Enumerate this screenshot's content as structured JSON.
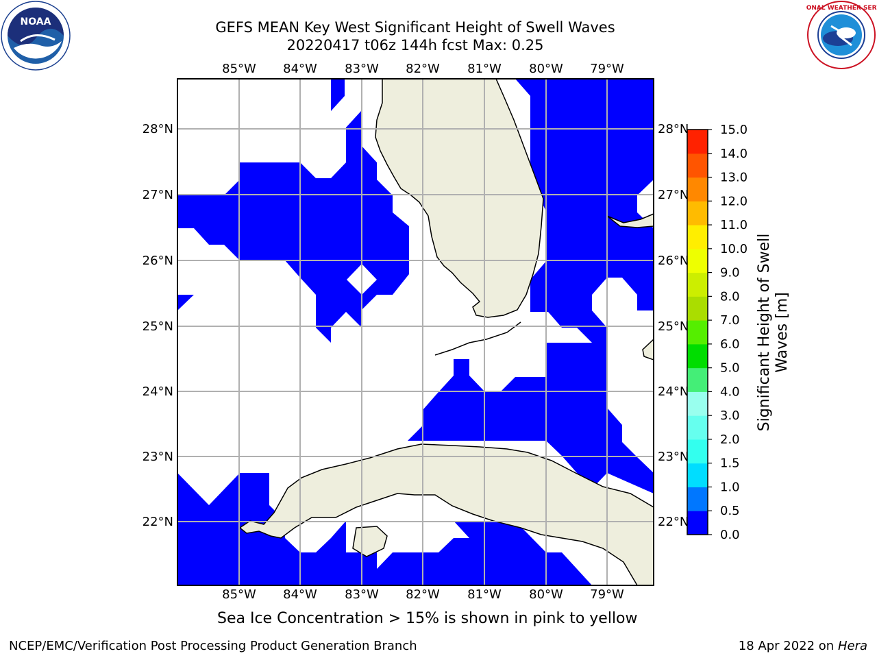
{
  "header": {
    "title_line1": "GEFS MEAN Key West Significant Height of Swell Waves",
    "title_line2": "20220417 t06z 144h fcst   Max: 0.25"
  },
  "logos": {
    "noaa": {
      "text": "NOAA",
      "ring_text": "NATIONAL OCEANIC AND ATMOSPHERIC ADMINISTRATION · U.S. DEPARTMENT OF COMMERCE"
    },
    "nws": {
      "ring_text": "NATIONAL WEATHER SERVICE"
    }
  },
  "map": {
    "lon_labels": [
      "85°W",
      "84°W",
      "83°W",
      "82°W",
      "81°W",
      "80°W",
      "79°W"
    ],
    "lat_labels": [
      "28°N",
      "27°N",
      "26°N",
      "25°N",
      "24°N",
      "23°N",
      "22°N"
    ]
  },
  "colorbar": {
    "label": "Significant Height of Swell Waves [m]",
    "tick_labels": [
      "0.0",
      "0.5",
      "1.0",
      "1.5",
      "2.0",
      "3.0",
      "4.0",
      "5.0",
      "6.0",
      "7.0",
      "8.0",
      "9.0",
      "10.0",
      "11.0",
      "12.0",
      "13.0",
      "14.0",
      "15.0"
    ],
    "colors": [
      "#0000ff",
      "#0077ff",
      "#00ddff",
      "#33ffee",
      "#66ffee",
      "#99ffee",
      "#44ee77",
      "#00dd00",
      "#55ee00",
      "#aadd00",
      "#ccee00",
      "#eeff00",
      "#ffee00",
      "#ffbb00",
      "#ff8800",
      "#ff5500",
      "#ff2200"
    ]
  },
  "subtitle": "Sea Ice Concentration > 15% is shown in pink to yellow",
  "footer": {
    "left": "NCEP/EMC/Verification Post Processing Product Generation Branch",
    "right_date": "18 Apr 2022 on ",
    "right_host": "Hera"
  },
  "colors": {
    "water_swell": "#0000ff",
    "land": "#eeeedd",
    "grid": "#b0b0b0"
  }
}
